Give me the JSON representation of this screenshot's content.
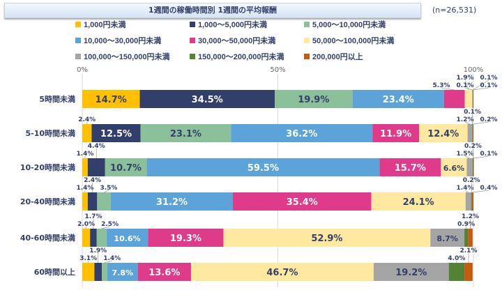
{
  "chart_data": {
    "type": "bar",
    "orientation": "horizontal-stacked-100",
    "title": "1週間の稼働時間別 1週間の平均報酬",
    "note": "(n=26,531)",
    "categories": [
      "5時間未満",
      "5-10時間未満",
      "10-20時間未満",
      "20-40時間未満",
      "40-60時間未満",
      "60時間以上"
    ],
    "xticks": [
      "0%",
      "50%",
      "100%"
    ],
    "xlim": [
      0,
      100
    ],
    "grid": true,
    "legend": "top",
    "series": [
      {
        "name": "1,000円未満",
        "color": "#FFC000",
        "values": [
          14.7,
          2.4,
          1.4,
          1.4,
          2.0,
          3.1
        ]
      },
      {
        "name": "1,000～5,000円未満",
        "color": "#333F6B",
        "values": [
          34.5,
          12.5,
          4.4,
          2.4,
          1.7,
          1.9
        ]
      },
      {
        "name": "5,000～10,000円未満",
        "color": "#8CC09A",
        "values": [
          19.9,
          23.1,
          10.7,
          3.5,
          2.5,
          1.4
        ]
      },
      {
        "name": "10,000～30,000円未満",
        "color": "#5BA3D9",
        "values": [
          23.4,
          36.2,
          59.5,
          31.2,
          10.6,
          7.8
        ]
      },
      {
        "name": "30,000～50,000円未満",
        "color": "#E03A8A",
        "values": [
          5.3,
          11.9,
          15.7,
          35.4,
          19.3,
          13.6
        ]
      },
      {
        "name": "50,000～100,000円未満",
        "color": "#FFE9A0",
        "values": [
          1.9,
          12.4,
          6.6,
          24.1,
          52.9,
          46.7
        ]
      },
      {
        "name": "100,000～150,000円未満",
        "color": "#A5A5A5",
        "values": [
          0.1,
          1.2,
          1.5,
          1.4,
          8.7,
          19.2
        ]
      },
      {
        "name": "150,000～200,000円未満",
        "color": "#548235",
        "values": [
          0.1,
          0.1,
          0.2,
          0.2,
          0.9,
          4.0
        ]
      },
      {
        "name": "200,000円以上",
        "color": "#C55A11",
        "values": [
          0.1,
          0.2,
          0.1,
          0.4,
          1.2,
          2.1
        ]
      }
    ]
  }
}
